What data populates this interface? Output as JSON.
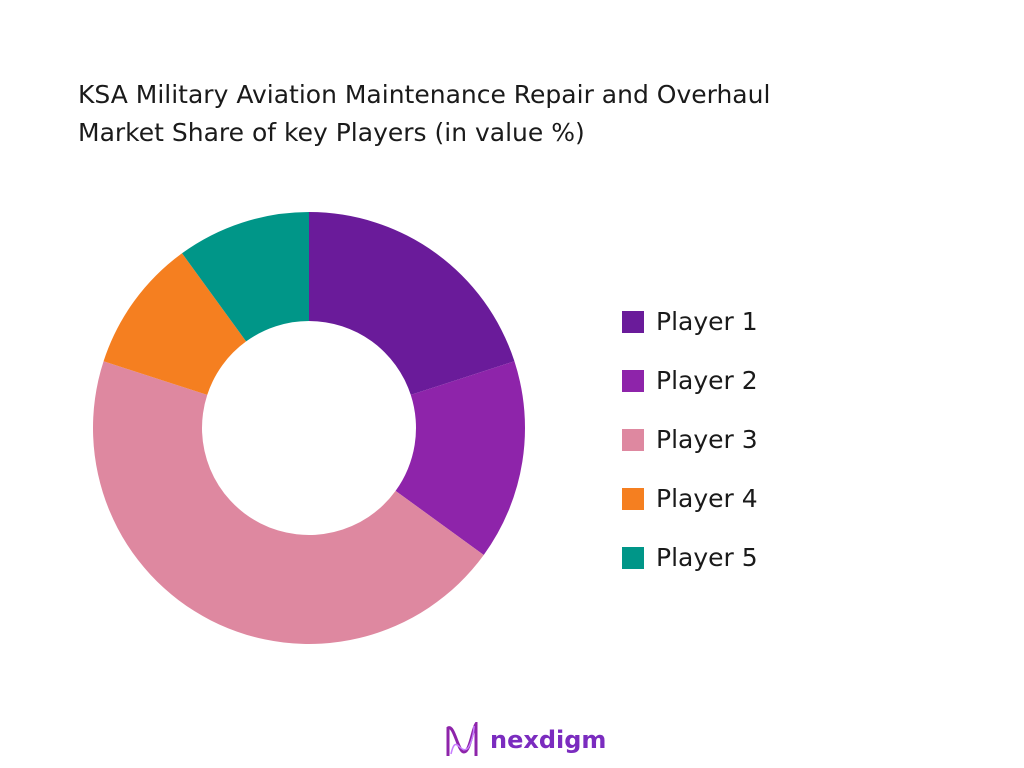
{
  "chart_data": {
    "type": "pie",
    "donut": true,
    "title": "KSA Military Aviation Maintenance Repair and Overhaul\nMarket Share of key Players (in value %)",
    "categories": [
      "Player 1",
      "Player 2",
      "Player 3",
      "Player 4",
      "Player 5"
    ],
    "values": [
      20,
      15,
      45,
      10,
      10
    ],
    "colors": [
      "#6a1b9a",
      "#8e24aa",
      "#de88a0",
      "#f57f20",
      "#009688"
    ],
    "legend_position": "right"
  },
  "logo": {
    "text": "nexdigm"
  }
}
